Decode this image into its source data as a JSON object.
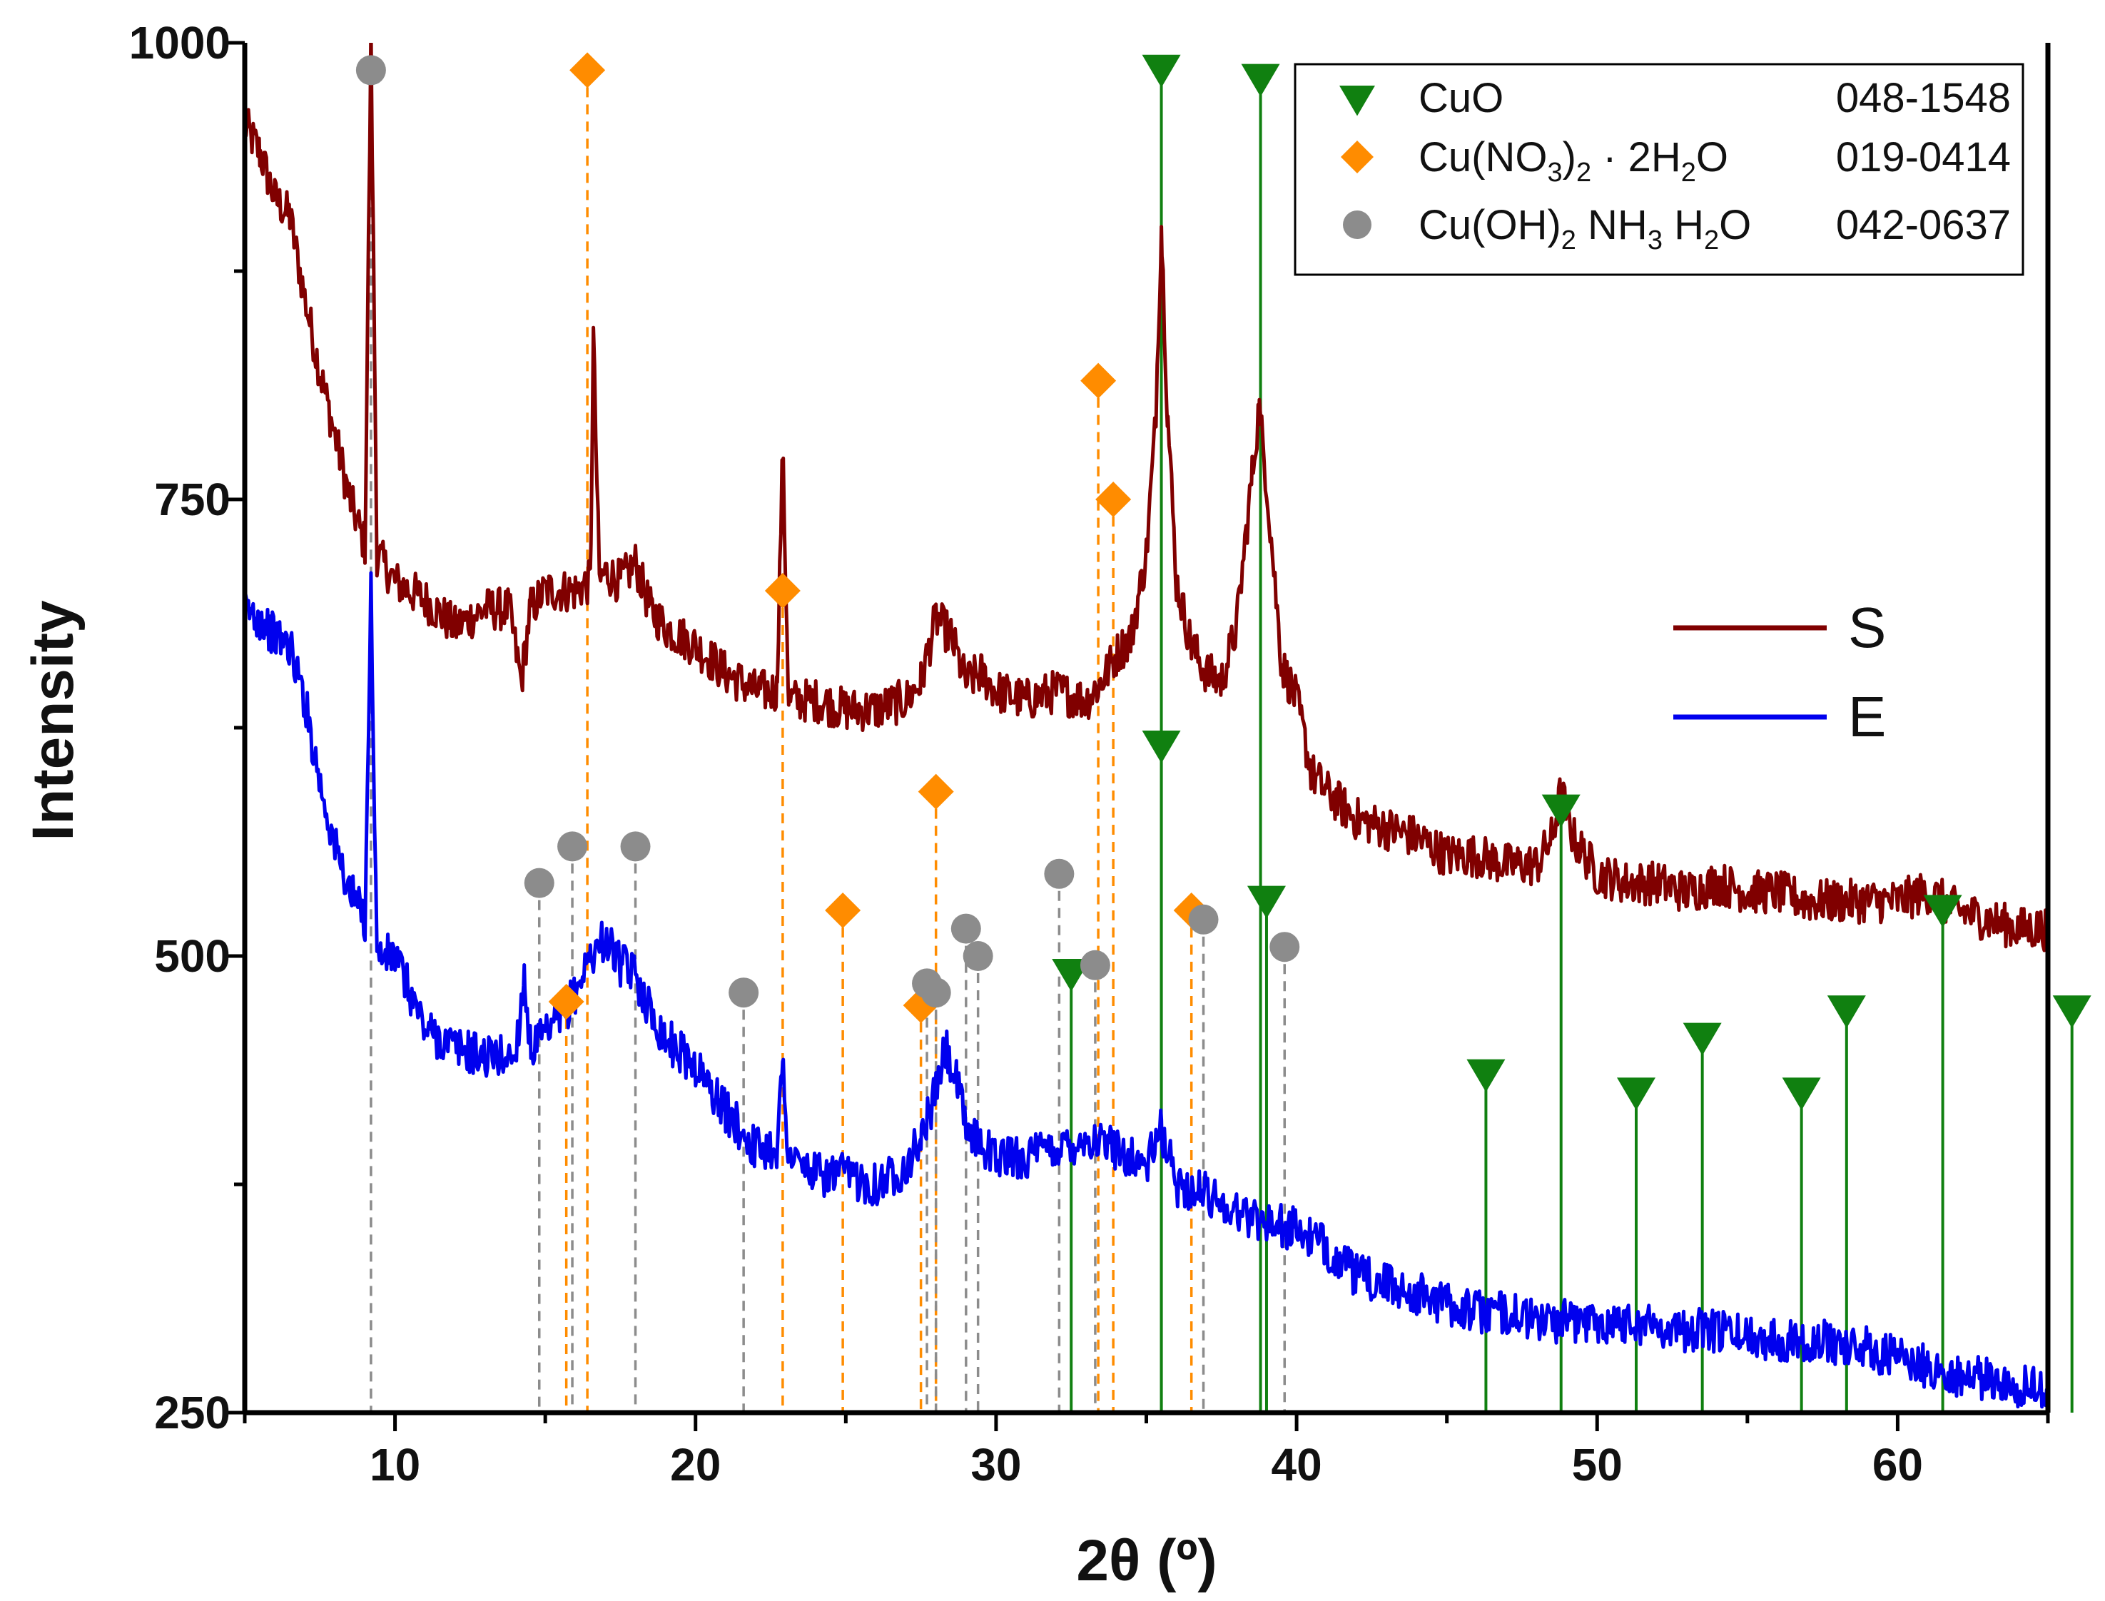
{
  "chart_data": {
    "type": "line",
    "title": "",
    "xlabel": "2θ   (º)",
    "ylabel": "Intensity",
    "xlim": [
      5,
      65
    ],
    "ylim": [
      250,
      1000
    ],
    "x_ticks": [
      10,
      20,
      30,
      40,
      50,
      60
    ],
    "y_ticks": [
      250,
      500,
      750,
      1000
    ],
    "colors": {
      "S": "#800000",
      "E": "#0000ee",
      "CuO": "#108010",
      "CuNO3": "#ff8c00",
      "CuOH": "#8c8c8c"
    },
    "series": [
      {
        "name": "S",
        "key": "S",
        "points": [
          [
            5,
            955
          ],
          [
            5.5,
            940
          ],
          [
            6,
            915
          ],
          [
            6.5,
            905
          ],
          [
            7,
            860
          ],
          [
            7.5,
            820
          ],
          [
            8,
            785
          ],
          [
            8.5,
            750
          ],
          [
            9,
            725
          ],
          [
            9.2,
            1000
          ],
          [
            9.4,
            720
          ],
          [
            10,
            705
          ],
          [
            11,
            695
          ],
          [
            12,
            680
          ],
          [
            13,
            690
          ],
          [
            13.8,
            690
          ],
          [
            14.2,
            650
          ],
          [
            14.5,
            690
          ],
          [
            15,
            700
          ],
          [
            16,
            700
          ],
          [
            16.5,
            705
          ],
          [
            16.6,
            840
          ],
          [
            16.8,
            705
          ],
          [
            17,
            710
          ],
          [
            17.5,
            705
          ],
          [
            18,
            715
          ],
          [
            18.5,
            690
          ],
          [
            19,
            680
          ],
          [
            20,
            670
          ],
          [
            21,
            655
          ],
          [
            22,
            645
          ],
          [
            22.7,
            645
          ],
          [
            22.9,
            775
          ],
          [
            23.1,
            640
          ],
          [
            24,
            640
          ],
          [
            25,
            635
          ],
          [
            26,
            635
          ],
          [
            27,
            640
          ],
          [
            27.5,
            650
          ],
          [
            28,
            685
          ],
          [
            28.5,
            675
          ],
          [
            29,
            650
          ],
          [
            29.5,
            655
          ],
          [
            30,
            645
          ],
          [
            31,
            640
          ],
          [
            32,
            645
          ],
          [
            33,
            640
          ],
          [
            33.5,
            650
          ],
          [
            34,
            665
          ],
          [
            34.5,
            675
          ],
          [
            35,
            720
          ],
          [
            35.3,
            790
          ],
          [
            35.5,
            900
          ],
          [
            35.7,
            800
          ],
          [
            36,
            705
          ],
          [
            36.5,
            670
          ],
          [
            37,
            655
          ],
          [
            37.5,
            650
          ],
          [
            38,
            680
          ],
          [
            38.5,
            760
          ],
          [
            38.75,
            800
          ],
          [
            39,
            760
          ],
          [
            39.5,
            660
          ],
          [
            40,
            640
          ],
          [
            40.5,
            600
          ],
          [
            41,
            590
          ],
          [
            42,
            575
          ],
          [
            43,
            570
          ],
          [
            44,
            565
          ],
          [
            45,
            555
          ],
          [
            46,
            555
          ],
          [
            47,
            550
          ],
          [
            48,
            550
          ],
          [
            48.5,
            565
          ],
          [
            48.8,
            590
          ],
          [
            49.2,
            565
          ],
          [
            50,
            545
          ],
          [
            51,
            540
          ],
          [
            52,
            540
          ],
          [
            53,
            535
          ],
          [
            54,
            540
          ],
          [
            55,
            535
          ],
          [
            56,
            535
          ],
          [
            57,
            530
          ],
          [
            58,
            530
          ],
          [
            59,
            530
          ],
          [
            60,
            530
          ],
          [
            61,
            535
          ],
          [
            62,
            525
          ],
          [
            63,
            520
          ],
          [
            64,
            515
          ],
          [
            65,
            515
          ]
        ]
      },
      {
        "name": "E",
        "key": "E",
        "points": [
          [
            5,
            690
          ],
          [
            5.5,
            685
          ],
          [
            6,
            675
          ],
          [
            6.5,
            670
          ],
          [
            7,
            640
          ],
          [
            7.5,
            595
          ],
          [
            8,
            560
          ],
          [
            8.5,
            535
          ],
          [
            9,
            520
          ],
          [
            9.2,
            700
          ],
          [
            9.4,
            500
          ],
          [
            10,
            500
          ],
          [
            11,
            460
          ],
          [
            12,
            450
          ],
          [
            13,
            445
          ],
          [
            14,
            445
          ],
          [
            14.3,
            490
          ],
          [
            14.5,
            450
          ],
          [
            15,
            455
          ],
          [
            15.5,
            465
          ],
          [
            16,
            480
          ],
          [
            16.5,
            500
          ],
          [
            17,
            510
          ],
          [
            17.5,
            495
          ],
          [
            18,
            490
          ],
          [
            18.5,
            470
          ],
          [
            19,
            455
          ],
          [
            20,
            440
          ],
          [
            21,
            415
          ],
          [
            22,
            395
          ],
          [
            22.7,
            395
          ],
          [
            22.9,
            440
          ],
          [
            23.1,
            390
          ],
          [
            24,
            380
          ],
          [
            25,
            380
          ],
          [
            26,
            375
          ],
          [
            27,
            385
          ],
          [
            27.5,
            400
          ],
          [
            28,
            425
          ],
          [
            28.3,
            450
          ],
          [
            28.7,
            430
          ],
          [
            29,
            405
          ],
          [
            30,
            390
          ],
          [
            31,
            390
          ],
          [
            32,
            395
          ],
          [
            33,
            400
          ],
          [
            34,
            395
          ],
          [
            35,
            385
          ],
          [
            35.5,
            405
          ],
          [
            36,
            375
          ],
          [
            37,
            370
          ],
          [
            38,
            360
          ],
          [
            39,
            355
          ],
          [
            40,
            350
          ],
          [
            41,
            340
          ],
          [
            42,
            325
          ],
          [
            43,
            320
          ],
          [
            44,
            315
          ],
          [
            45,
            310
          ],
          [
            46,
            305
          ],
          [
            47,
            305
          ],
          [
            48,
            300
          ],
          [
            49,
            300
          ],
          [
            50,
            300
          ],
          [
            51,
            300
          ],
          [
            52,
            298
          ],
          [
            53,
            295
          ],
          [
            54,
            295
          ],
          [
            55,
            292
          ],
          [
            56,
            290
          ],
          [
            57,
            290
          ],
          [
            58,
            288
          ],
          [
            59,
            285
          ],
          [
            60,
            280
          ],
          [
            61,
            275
          ],
          [
            62,
            270
          ],
          [
            63,
            268
          ],
          [
            64,
            265
          ],
          [
            65,
            262
          ]
        ]
      }
    ],
    "reference_markers": {
      "CuO": {
        "label": "CuO",
        "card": "048-1548",
        "marker": "triangle-down",
        "style": "solid",
        "peaks": [
          [
            32.5,
            490
          ],
          [
            35.5,
            985
          ],
          [
            35.5,
            615
          ],
          [
            38.8,
            980
          ],
          [
            39,
            530
          ],
          [
            46.3,
            435
          ],
          [
            48.8,
            580
          ],
          [
            51.3,
            425
          ],
          [
            53.5,
            455
          ],
          [
            56.8,
            425
          ],
          [
            58.3,
            470
          ],
          [
            61.5,
            525
          ],
          [
            65.8,
            470
          ]
        ]
      },
      "CuNO3": {
        "label": "Cu(NO3)2 · 2H2O",
        "card": "019-0414",
        "marker": "diamond",
        "style": "dashed",
        "peaks": [
          [
            16.4,
            985
          ],
          [
            15.7,
            475
          ],
          [
            22.9,
            700
          ],
          [
            24.9,
            525
          ],
          [
            27.5,
            473
          ],
          [
            28,
            590
          ],
          [
            33.4,
            815
          ],
          [
            33.9,
            750
          ],
          [
            36.5,
            525
          ]
        ]
      },
      "CuOH": {
        "label": "Cu(OH)2 NH3 H2O",
        "card": "042-0637",
        "marker": "circle",
        "style": "dashed",
        "peaks": [
          [
            9.2,
            985
          ],
          [
            14.8,
            540
          ],
          [
            15.9,
            560
          ],
          [
            18,
            560
          ],
          [
            21.6,
            480
          ],
          [
            27.7,
            485
          ],
          [
            28,
            480
          ],
          [
            29,
            515
          ],
          [
            29.4,
            500
          ],
          [
            32.1,
            545
          ],
          [
            33.3,
            495
          ],
          [
            36.9,
            520
          ],
          [
            39.6,
            505
          ]
        ]
      }
    },
    "legend": {
      "position": "top-right",
      "entries": [
        {
          "key": "CuO",
          "label": "CuO",
          "card": "048-1548"
        },
        {
          "key": "CuNO3",
          "label": "Cu(NO3)2 · 2H2O",
          "card": "019-0414"
        },
        {
          "key": "CuOH",
          "label": "Cu(OH)2 NH3 H2O",
          "card": "042-0637"
        }
      ]
    },
    "series_labels": [
      "S",
      "E"
    ]
  }
}
